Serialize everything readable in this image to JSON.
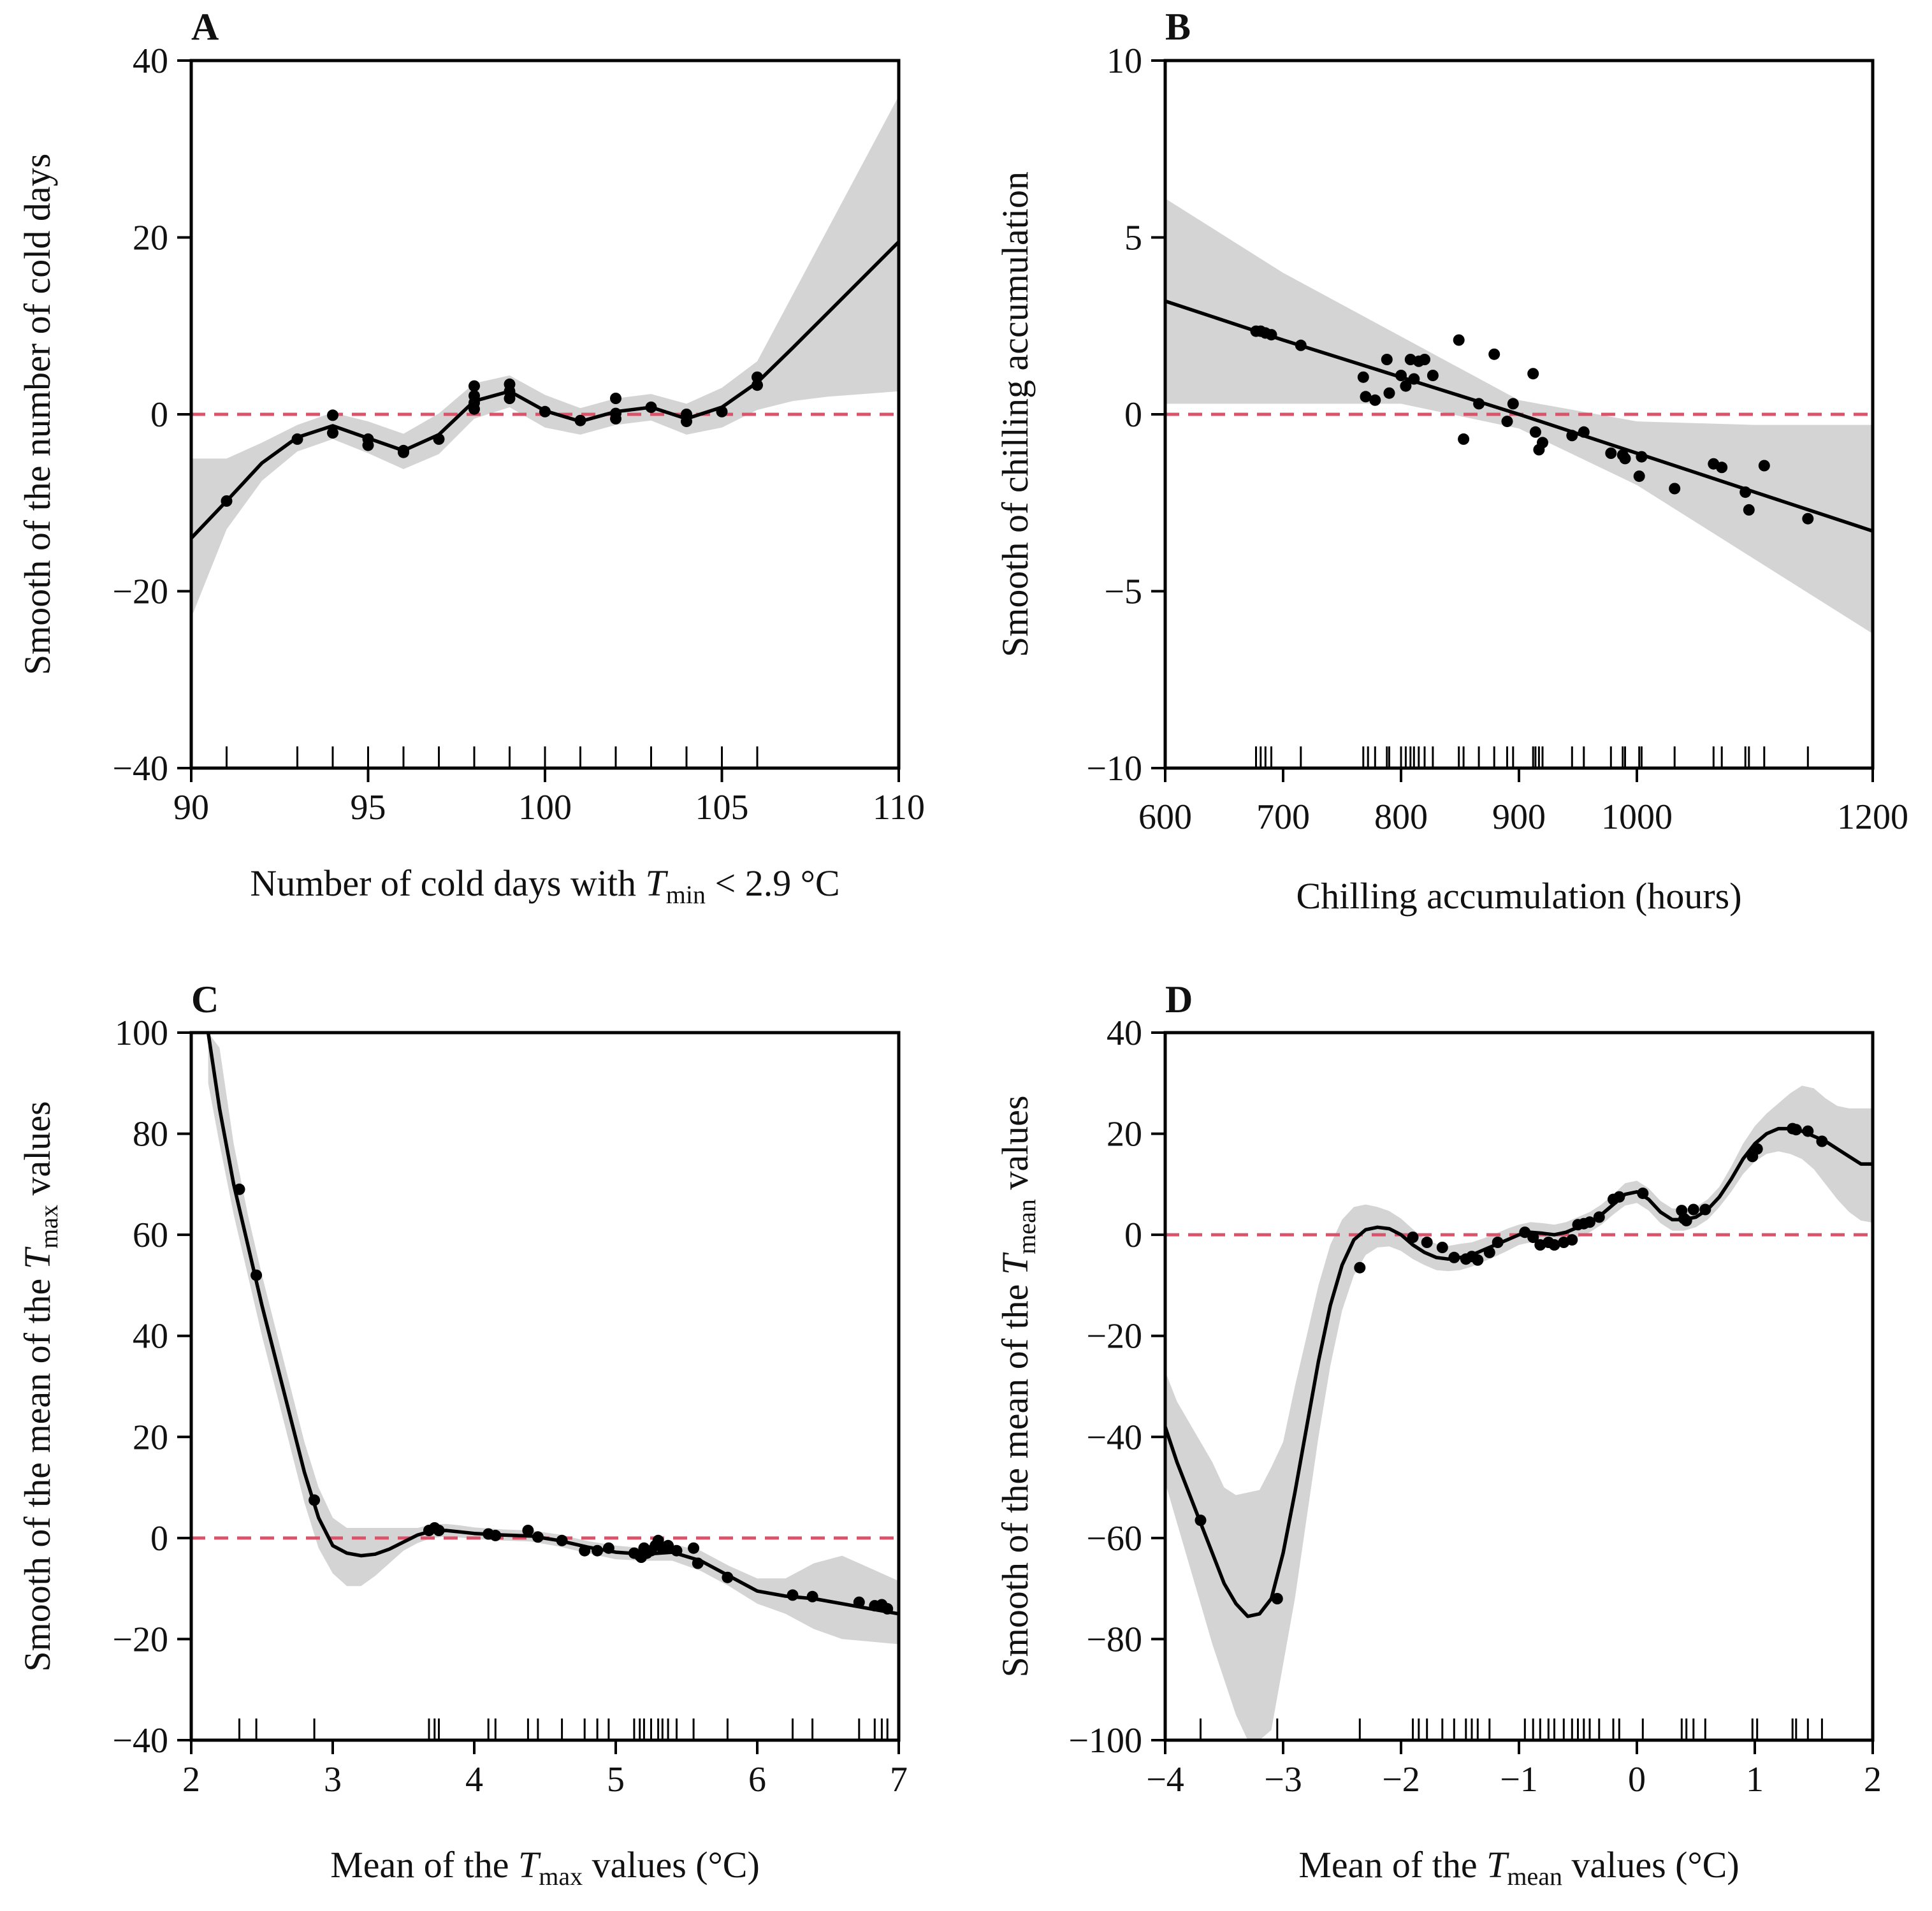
{
  "colors": {
    "band": "#d4d4d4",
    "curve": "#000000",
    "points": "#000000",
    "reference_line": "#d9536b"
  },
  "chart_data": [
    {
      "id": "A",
      "type": "line",
      "panel_label": "A",
      "xlabel": {
        "pre": "Number of cold days with ",
        "var": "T",
        "sub": "min",
        "post": " < 2.9 °C"
      },
      "ylabel": {
        "pre": "Smooth of the number of cold days",
        "var": "",
        "sub": "",
        "post": ""
      },
      "xlim": [
        90,
        110
      ],
      "ylim": [
        -40,
        40
      ],
      "xticks": [
        90,
        95,
        100,
        105,
        110
      ],
      "yticks": [
        -40,
        -20,
        0,
        20,
        40
      ],
      "xtick_labels": [
        "90",
        "95",
        "100",
        "105",
        "110"
      ],
      "ytick_labels": [
        "−40",
        "−20",
        "0",
        "20",
        "40"
      ],
      "reference_y": 0,
      "smooth": {
        "x": [
          90,
          91,
          92,
          93,
          94,
          95,
          96,
          97,
          98,
          99,
          100,
          101,
          102,
          103,
          104,
          105,
          106,
          107,
          108,
          109,
          110
        ],
        "y": [
          -14,
          -9.8,
          -5.5,
          -2.6,
          -1.3,
          -2.7,
          -4.1,
          -2.3,
          1.5,
          2.6,
          0.4,
          -0.8,
          0.3,
          0.8,
          -0.5,
          0.8,
          3.6,
          7.5,
          11.5,
          15.5,
          19.5
        ],
        "lower": [
          -23,
          -13,
          -7.5,
          -4.2,
          -2.8,
          -4.4,
          -6.2,
          -4.5,
          -0.5,
          0.8,
          -1.5,
          -2.3,
          -1.2,
          -0.7,
          -2.3,
          -1.5,
          0.5,
          1.5,
          2,
          2.3,
          2.6
        ],
        "upper": [
          -5,
          -5,
          -3.2,
          -1.2,
          0.2,
          -0.8,
          -2.2,
          0.1,
          3.5,
          4.4,
          2.2,
          0.7,
          1.8,
          2.3,
          1.2,
          3,
          6,
          13.5,
          21,
          28.5,
          36
        ]
      },
      "points": {
        "x": [
          91,
          93,
          94,
          94,
          95,
          95,
          96,
          96,
          97,
          98,
          98,
          98,
          98,
          99,
          99,
          99,
          100,
          101,
          102,
          102,
          102,
          103,
          104,
          104,
          105,
          106,
          106
        ],
        "y": [
          -9.8,
          -2.8,
          -0.1,
          -2.1,
          -2.8,
          -3.5,
          -4.1,
          -4.3,
          -2.8,
          0.6,
          1.3,
          2.1,
          3.2,
          1.8,
          2.6,
          3.4,
          0.3,
          -0.7,
          1.8,
          0.1,
          -0.5,
          0.8,
          0,
          -0.8,
          0.3,
          3.3,
          4.2
        ]
      },
      "rug": [
        91,
        93,
        94,
        95,
        96,
        97,
        98,
        99,
        100,
        101,
        102,
        103,
        104,
        105,
        106
      ]
    },
    {
      "id": "B",
      "type": "line",
      "panel_label": "B",
      "xlabel": {
        "pre": "Chilling accumulation (hours)",
        "var": "",
        "sub": "",
        "post": ""
      },
      "ylabel": {
        "pre": "Smooth of chilling accumulation",
        "var": "",
        "sub": "",
        "post": ""
      },
      "xlim": [
        600,
        1200
      ],
      "ylim": [
        -10,
        10
      ],
      "xticks": [
        600,
        700,
        800,
        900,
        1000,
        1200
      ],
      "yticks": [
        -10,
        -5,
        0,
        5,
        10
      ],
      "xtick_labels": [
        "600",
        "700",
        "800",
        "900",
        "1000",
        "1200"
      ],
      "ytick_labels": [
        "−10",
        "−5",
        "0",
        "5",
        "10"
      ],
      "reference_y": 0,
      "smooth": {
        "x": [
          600,
          700,
          800,
          900,
          1000,
          1100,
          1200
        ],
        "y": [
          3.2,
          2.1,
          1.05,
          0,
          -1.1,
          -2.2,
          -3.3
        ],
        "lower": [
          0.3,
          0.3,
          0.3,
          -0.4,
          -2,
          -4.1,
          -6.2
        ],
        "upper": [
          6.1,
          4,
          2.2,
          0.4,
          -0.2,
          -0.3,
          -0.3
        ]
      },
      "points": {
        "x": [
          677,
          681,
          685,
          690,
          715,
          768,
          770,
          778,
          788,
          790,
          800,
          804,
          808,
          811,
          815,
          820,
          827,
          849,
          853,
          866,
          879,
          890,
          895,
          912,
          914,
          917,
          920,
          945,
          955,
          978,
          988,
          990,
          1002,
          1004,
          1032,
          1065,
          1072,
          1092,
          1095,
          1108,
          1145
        ],
        "y": [
          2.35,
          2.35,
          2.3,
          2.25,
          1.95,
          1.05,
          0.5,
          0.4,
          1.55,
          0.6,
          1.1,
          0.8,
          1.55,
          1.0,
          1.5,
          1.55,
          1.1,
          2.1,
          -0.7,
          0.3,
          1.7,
          -0.2,
          0.3,
          1.15,
          -0.5,
          -1.0,
          -0.8,
          -0.6,
          -0.5,
          -1.1,
          -1.15,
          -1.25,
          -1.75,
          -1.2,
          -2.1,
          -1.4,
          -1.5,
          -2.2,
          -2.7,
          -1.45,
          -2.95
        ]
      },
      "rug": [
        677,
        681,
        685,
        690,
        715,
        768,
        772,
        778,
        788,
        790,
        800,
        804,
        808,
        811,
        815,
        820,
        827,
        849,
        853,
        866,
        879,
        890,
        895,
        912,
        914,
        917,
        920,
        945,
        955,
        978,
        988,
        990,
        1002,
        1004,
        1032,
        1065,
        1072,
        1092,
        1095,
        1108,
        1145
      ]
    },
    {
      "id": "C",
      "type": "line",
      "panel_label": "C",
      "xlabel": {
        "pre": "Mean of the ",
        "var": "T",
        "sub": "max",
        "post": " values (°C)"
      },
      "ylabel": {
        "pre": "Smooth of the mean of the ",
        "var": "T",
        "sub": "max",
        "post": " values"
      },
      "xlim": [
        2,
        7
      ],
      "ylim": [
        -40,
        100
      ],
      "xticks": [
        2,
        3,
        4,
        5,
        6,
        7
      ],
      "yticks": [
        -40,
        -20,
        0,
        20,
        40,
        60,
        80,
        100
      ],
      "xtick_labels": [
        "2",
        "3",
        "4",
        "5",
        "6",
        "7"
      ],
      "ytick_labels": [
        "−40",
        "−20",
        "0",
        "20",
        "40",
        "60",
        "80",
        "100"
      ],
      "reference_y": 0,
      "smooth": {
        "x": [
          2.12,
          2.2,
          2.3,
          2.4,
          2.5,
          2.6,
          2.7,
          2.8,
          2.9,
          3.0,
          3.1,
          3.2,
          3.3,
          3.4,
          3.5,
          3.6,
          3.7,
          3.8,
          3.9,
          4.0,
          4.2,
          4.4,
          4.6,
          4.8,
          5.0,
          5.2,
          5.4,
          5.6,
          5.8,
          6.0,
          6.2,
          6.4,
          6.6,
          6.8,
          7.0
        ],
        "y": [
          100,
          85,
          70,
          58,
          46,
          35,
          24,
          13,
          4,
          -1.5,
          -3,
          -3.5,
          -3.2,
          -2.2,
          -0.8,
          0.6,
          1.4,
          1.5,
          1.2,
          0.9,
          0.6,
          0.4,
          -0.5,
          -1.8,
          -2.8,
          -3.2,
          -2.8,
          -4.5,
          -7.5,
          -10.5,
          -11.5,
          -12,
          -13,
          -14,
          -15
        ],
        "lower": [
          90,
          78,
          64,
          52,
          40,
          29,
          18,
          7,
          -2,
          -7,
          -9.5,
          -9.5,
          -7.5,
          -5,
          -2.5,
          -1,
          0,
          0.3,
          0.1,
          -0.2,
          -0.5,
          -0.7,
          -1.7,
          -3,
          -4.2,
          -4.5,
          -4.5,
          -6.5,
          -9.5,
          -13,
          -15,
          -18,
          -20,
          -20.5,
          -21
        ],
        "upper": [
          100,
          97,
          78,
          64,
          52,
          41,
          30,
          19,
          10,
          4,
          2,
          2,
          2,
          2,
          2,
          2,
          2.7,
          2.8,
          2.5,
          2.1,
          1.7,
          1.5,
          0.7,
          -0.6,
          -1.5,
          -2,
          -1.2,
          -2.5,
          -5.5,
          -8,
          -8,
          -5,
          -3.5,
          -6,
          -8.5
        ]
      },
      "points": {
        "x": [
          2.34,
          2.46,
          2.87,
          3.68,
          3.72,
          3.75,
          4.1,
          4.15,
          4.38,
          4.45,
          4.62,
          4.78,
          4.87,
          4.95,
          5.13,
          5.17,
          5.18,
          5.2,
          5.22,
          5.25,
          5.28,
          5.3,
          5.33,
          5.37,
          5.43,
          5.55,
          5.58,
          5.79,
          6.25,
          6.39,
          6.72,
          6.83,
          6.88,
          6.92
        ],
        "y": [
          69,
          52,
          7.5,
          1.5,
          2,
          1.5,
          0.8,
          0.5,
          1.5,
          0.2,
          -0.5,
          -2.5,
          -2.5,
          -2,
          -3,
          -3.5,
          -3.8,
          -2,
          -3,
          -2.5,
          -1.5,
          -0.5,
          -2,
          -1.5,
          -2.5,
          -2,
          -5,
          -7.8,
          -11.3,
          -11.6,
          -12.7,
          -13.4,
          -13.2,
          -14
        ]
      },
      "rug": [
        2.34,
        2.46,
        2.87,
        3.68,
        3.72,
        3.75,
        4.1,
        4.15,
        4.38,
        4.45,
        4.62,
        4.78,
        4.87,
        4.95,
        5.13,
        5.17,
        5.2,
        5.25,
        5.3,
        5.33,
        5.37,
        5.43,
        5.55,
        5.79,
        6.25,
        6.39,
        6.72,
        6.83,
        6.88,
        6.92
      ]
    },
    {
      "id": "D",
      "type": "line",
      "panel_label": "D",
      "xlabel": {
        "pre": "Mean of the ",
        "var": "T",
        "sub": "mean",
        "post": " values (°C)"
      },
      "ylabel": {
        "pre": "Smooth of the mean of the ",
        "var": "T",
        "sub": "mean",
        "post": " values"
      },
      "xlim": [
        -4,
        2
      ],
      "ylim": [
        -100,
        40
      ],
      "xticks": [
        -4,
        -3,
        -2,
        -1,
        0,
        1,
        2
      ],
      "yticks": [
        -100,
        -80,
        -60,
        -40,
        -20,
        0,
        20,
        40
      ],
      "xtick_labels": [
        "−4",
        "−3",
        "−2",
        "−1",
        "0",
        "1",
        "2"
      ],
      "ytick_labels": [
        "−100",
        "−80",
        "−60",
        "−40",
        "−20",
        "0",
        "20",
        "40"
      ],
      "reference_y": 0,
      "smooth": {
        "x": [
          -4,
          -3.9,
          -3.8,
          -3.7,
          -3.6,
          -3.5,
          -3.4,
          -3.3,
          -3.2,
          -3.1,
          -3.0,
          -2.9,
          -2.8,
          -2.7,
          -2.6,
          -2.5,
          -2.4,
          -2.3,
          -2.2,
          -2.1,
          -2.0,
          -1.9,
          -1.8,
          -1.7,
          -1.6,
          -1.5,
          -1.4,
          -1.3,
          -1.2,
          -1.1,
          -1.0,
          -0.9,
          -0.8,
          -0.7,
          -0.6,
          -0.5,
          -0.4,
          -0.3,
          -0.2,
          -0.1,
          0.0,
          0.1,
          0.2,
          0.3,
          0.4,
          0.5,
          0.6,
          0.7,
          0.8,
          0.9,
          1.0,
          1.1,
          1.2,
          1.3,
          1.4,
          1.5,
          1.6,
          1.7,
          1.8,
          1.9,
          2.0
        ],
        "y": [
          -38,
          -45,
          -51,
          -57,
          -63,
          -69,
          -73,
          -75.5,
          -75,
          -72,
          -63,
          -51,
          -38,
          -25,
          -14,
          -6,
          -1,
          1,
          1.5,
          1.2,
          0,
          -2,
          -3.5,
          -4.5,
          -4.8,
          -4.5,
          -4,
          -3,
          -2,
          -1,
          0,
          0.5,
          0.3,
          0,
          0.5,
          1.5,
          2.5,
          4,
          6,
          8,
          8.5,
          7,
          4.5,
          3,
          3,
          3.5,
          5,
          7.5,
          11,
          15,
          18,
          20,
          21,
          21,
          20.5,
          19.5,
          18.5,
          17,
          15.5,
          14,
          14
        ],
        "lower": [
          -49,
          -57,
          -65,
          -73,
          -81,
          -88,
          -95,
          -100,
          -100,
          -98,
          -85,
          -72,
          -56,
          -40,
          -26,
          -15,
          -8,
          -4,
          -2.5,
          -2.3,
          -3.2,
          -4.8,
          -6,
          -7,
          -7.2,
          -7,
          -6.3,
          -5.3,
          -4.3,
          -3.2,
          -2,
          -1.5,
          -1.7,
          -2,
          -1.5,
          -0.5,
          0.5,
          2,
          4,
          5.8,
          6.3,
          4.8,
          2.3,
          0.8,
          0.8,
          1.5,
          3,
          5.5,
          8.5,
          12,
          14.5,
          16,
          16.5,
          16,
          15,
          13,
          10,
          7,
          4.5,
          2.8,
          2.4
        ],
        "upper": [
          -27,
          -33,
          -37,
          -41,
          -45,
          -50,
          -51.5,
          -51,
          -50.5,
          -46,
          -41,
          -30,
          -20,
          -10,
          -2,
          3,
          5.5,
          6,
          5.5,
          4.7,
          3.2,
          1.1,
          -0.8,
          -1.8,
          -2.2,
          -1.8,
          -1.5,
          -0.7,
          0.2,
          1.2,
          2,
          2.5,
          2.3,
          2,
          2.5,
          3.5,
          4.5,
          6,
          8,
          10.2,
          10.7,
          9.2,
          6.7,
          5.2,
          5.2,
          5.5,
          7,
          9.5,
          13.5,
          18,
          21.5,
          24,
          26,
          28,
          29.5,
          29,
          27,
          25.5,
          25,
          25,
          25
        ]
      },
      "points": {
        "x": [
          -3.7,
          -3.05,
          -2.35,
          -1.9,
          -1.78,
          -1.65,
          -1.55,
          -1.45,
          -1.4,
          -1.35,
          -1.25,
          -1.18,
          -0.95,
          -0.88,
          -0.82,
          -0.75,
          -0.7,
          -0.62,
          -0.55,
          -0.5,
          -0.45,
          -0.4,
          -0.32,
          -0.2,
          -0.15,
          0.05,
          0.38,
          0.4,
          0.42,
          0.48,
          0.58,
          0.98,
          1.02,
          1.32,
          1.35,
          1.45,
          1.57
        ],
        "y": [
          -56.5,
          -72,
          -6.5,
          -0.5,
          -1.5,
          -2.5,
          -4.5,
          -4.8,
          -4.3,
          -5,
          -3.5,
          -1.5,
          0.5,
          -0.5,
          -2,
          -1.5,
          -2,
          -1.5,
          -1,
          2,
          2.2,
          2.5,
          3.5,
          7,
          7.5,
          8.2,
          4.8,
          3.2,
          2.8,
          5,
          5,
          15.5,
          17,
          21,
          20.8,
          20.5,
          18.5
        ]
      },
      "rug": [
        -3.7,
        -3.05,
        -2.35,
        -1.9,
        -1.85,
        -1.78,
        -1.65,
        -1.55,
        -1.45,
        -1.4,
        -1.35,
        -1.25,
        -0.95,
        -0.88,
        -0.82,
        -0.75,
        -0.7,
        -0.62,
        -0.55,
        -0.5,
        -0.45,
        -0.4,
        -0.32,
        -0.2,
        -0.15,
        0.05,
        0.38,
        0.42,
        0.48,
        0.58,
        0.98,
        1.02,
        1.32,
        1.35,
        1.45,
        1.57
      ]
    }
  ]
}
